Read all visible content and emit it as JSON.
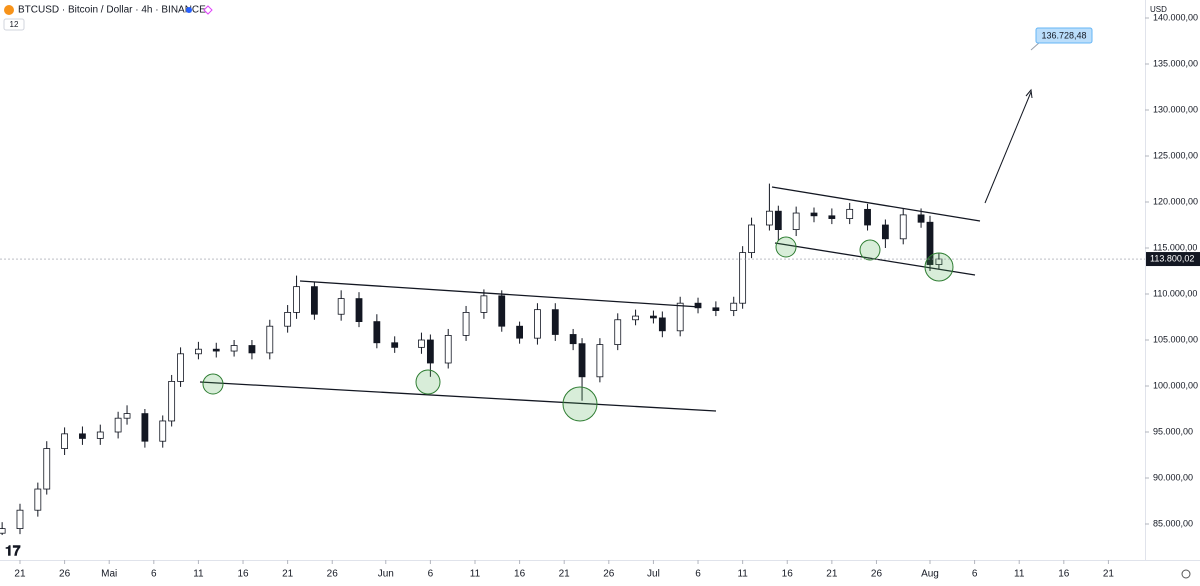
{
  "chart_data": {
    "type": "candlestick",
    "title": "BTCUSD · Bitcoin / Dollar · 4h · BINANCE",
    "badge": "12",
    "currency": "USD",
    "x": [
      -2,
      0,
      2,
      3,
      5,
      7,
      9,
      11,
      12,
      14,
      16,
      17,
      18,
      20,
      22,
      24,
      26,
      28,
      30,
      31,
      33,
      36,
      38,
      40,
      42,
      45,
      46,
      48,
      50,
      52,
      54,
      56,
      58,
      60,
      62,
      63,
      65,
      67,
      69,
      71,
      72,
      74,
      76,
      78,
      80,
      81,
      82,
      84,
      85,
      87,
      89,
      91,
      93,
      95,
      97,
      99,
      101,
      102,
      103
    ],
    "series": [
      {
        "name": "BTCUSD",
        "open": [
          84000,
          84500,
          86500,
          88800,
          93200,
          94800,
          94300,
          95000,
          96500,
          97000,
          94000,
          96200,
          100500,
          103500,
          104000,
          103800,
          104400,
          103600,
          106500,
          108000,
          110800,
          107800,
          109500,
          107000,
          104700,
          104200,
          105000,
          102500,
          105500,
          108000,
          109800,
          106500,
          105200,
          108300,
          105600,
          104600,
          101000,
          104500,
          107200,
          107600,
          107400,
          106000,
          109000,
          108500,
          108200,
          109000,
          114500,
          117500,
          119000,
          117000,
          118800,
          118500,
          118200,
          119200,
          117500,
          116000,
          118600,
          117800,
          113200
        ],
        "high": [
          85200,
          87200,
          89500,
          94000,
          95500,
          95600,
          95800,
          97200,
          97900,
          97500,
          96800,
          101200,
          104200,
          104800,
          104700,
          105000,
          105000,
          107200,
          108800,
          112000,
          111300,
          110400,
          110200,
          107800,
          105400,
          105800,
          105600,
          106200,
          108700,
          110500,
          110400,
          107000,
          109000,
          109000,
          106200,
          105200,
          105200,
          107900,
          108300,
          108200,
          108100,
          109700,
          109600,
          109200,
          109700,
          115200,
          118300,
          122000,
          119600,
          119500,
          119400,
          119300,
          119900,
          119800,
          118100,
          119300,
          119300,
          118500,
          114400
        ],
        "low": [
          83800,
          83900,
          85800,
          88200,
          92500,
          93600,
          93600,
          94300,
          95800,
          93300,
          93300,
          95600,
          99900,
          102900,
          103100,
          103200,
          102900,
          102900,
          105800,
          107300,
          107200,
          107100,
          106400,
          104100,
          103600,
          103500,
          101000,
          101900,
          104900,
          107300,
          105900,
          104600,
          104500,
          104900,
          103900,
          98400,
          100400,
          103900,
          106600,
          106800,
          105300,
          105400,
          107900,
          107600,
          107600,
          108400,
          113900,
          116900,
          115800,
          116300,
          117800,
          117600,
          117600,
          116900,
          115000,
          115400,
          117200,
          112500,
          112700
        ],
        "close": [
          84500,
          86500,
          88800,
          93200,
          94800,
          94300,
          95000,
          96500,
          97000,
          94000,
          96200,
          100500,
          103500,
          104000,
          103800,
          104400,
          103600,
          106500,
          108000,
          110800,
          107800,
          109500,
          107000,
          104700,
          104200,
          105000,
          102500,
          105500,
          108000,
          109800,
          106500,
          105200,
          108300,
          105600,
          104600,
          101000,
          104500,
          107200,
          107600,
          107400,
          106000,
          109000,
          108500,
          108200,
          109000,
          114500,
          117500,
          119000,
          117000,
          118800,
          118500,
          118200,
          119200,
          117500,
          116000,
          118600,
          117800,
          113200,
          113800
        ]
      }
    ],
    "up_color": "#ffffff",
    "down_color": "#131722",
    "wick_color": "#131722",
    "last_price": {
      "value": 113800.02,
      "label": "113.800,02"
    },
    "target_label": "136.728,48",
    "xlim": [
      -2.24,
      126.1
    ],
    "xticks": [
      {
        "value": 0,
        "label": "21"
      },
      {
        "value": 5,
        "label": "26"
      },
      {
        "value": 10,
        "label": "Mai"
      },
      {
        "value": 15,
        "label": "6"
      },
      {
        "value": 20,
        "label": "11"
      },
      {
        "value": 25,
        "label": "16"
      },
      {
        "value": 30,
        "label": "21"
      },
      {
        "value": 35,
        "label": "26"
      },
      {
        "value": 41,
        "label": "Jun"
      },
      {
        "value": 46,
        "label": "6"
      },
      {
        "value": 51,
        "label": "11"
      },
      {
        "value": 56,
        "label": "16"
      },
      {
        "value": 61,
        "label": "21"
      },
      {
        "value": 66,
        "label": "26"
      },
      {
        "value": 71,
        "label": "Jul"
      },
      {
        "value": 76,
        "label": "6"
      },
      {
        "value": 81,
        "label": "11"
      },
      {
        "value": 86,
        "label": "16"
      },
      {
        "value": 91,
        "label": "21"
      },
      {
        "value": 96,
        "label": "26"
      },
      {
        "value": 102,
        "label": "Aug"
      },
      {
        "value": 107,
        "label": "6"
      },
      {
        "value": 112,
        "label": "11"
      },
      {
        "value": 117,
        "label": "16"
      },
      {
        "value": 122,
        "label": "21"
      }
    ],
    "ylim": [
      82174,
      141957
    ],
    "yticks": [
      {
        "value": 85000,
        "label": "85.000,00"
      },
      {
        "value": 90000,
        "label": "90.000,00"
      },
      {
        "value": 95000,
        "label": "95.000,00"
      },
      {
        "value": 100000,
        "label": "100.000,00"
      },
      {
        "value": 105000,
        "label": "105.000,00"
      },
      {
        "value": 110000,
        "label": "110.000,00"
      },
      {
        "value": 115000,
        "label": "115.000,00"
      },
      {
        "value": 120000,
        "label": "120.000,00"
      },
      {
        "value": 125000,
        "label": "125.000,00"
      },
      {
        "value": 130000,
        "label": "130.000,00"
      },
      {
        "value": 135000,
        "label": "135.000,00"
      },
      {
        "value": 140000,
        "label": "140.000,00"
      }
    ]
  }
}
